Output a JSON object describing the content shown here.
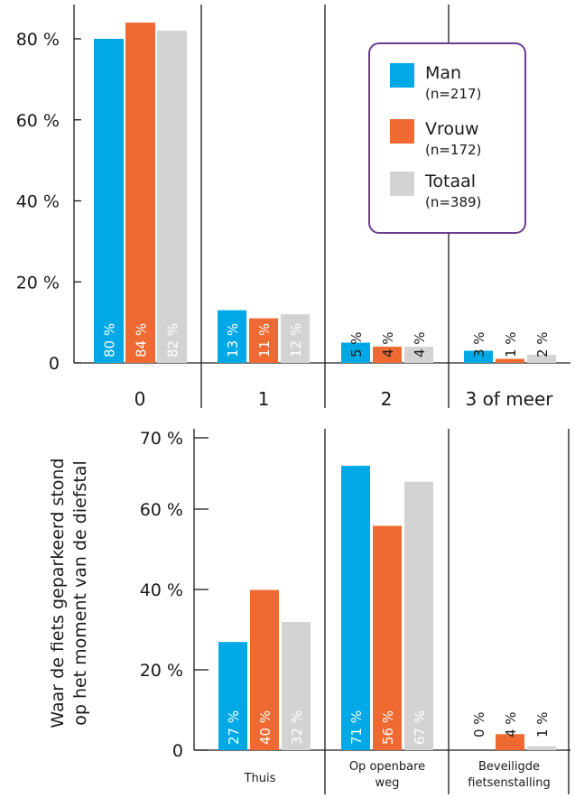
{
  "colors": {
    "man": "#00a9e6",
    "vrouw": "#ef6a32",
    "totaal": "#d3d3d3",
    "legend_border": "#6a3d8f",
    "axis": "#1a1a1a"
  },
  "chart_data": [
    {
      "type": "bar",
      "categories": [
        "0",
        "1",
        "2",
        "3 of meer"
      ],
      "ylim": [
        0,
        90
      ],
      "yticks": [
        "0",
        "20 %",
        "40 %",
        "60 %",
        "80 %"
      ],
      "series": [
        {
          "name": "Man",
          "n": "(n=217)",
          "values": [
            80,
            13,
            5,
            3
          ],
          "labels": [
            "80 %",
            "13 %",
            "5 %",
            "3 %"
          ]
        },
        {
          "name": "Vrouw",
          "n": "(n=172)",
          "values": [
            84,
            11,
            4,
            1
          ],
          "labels": [
            "84 %",
            "11 %",
            "4 %",
            "1 %"
          ]
        },
        {
          "name": "Totaal",
          "n": "(n=389)",
          "values": [
            82,
            12,
            4,
            2
          ],
          "labels": [
            "82 %",
            "12 %",
            "4 %",
            "2 %"
          ]
        }
      ],
      "legend": "top-right",
      "grid": false
    },
    {
      "type": "bar",
      "categories": [
        [
          "Thuis"
        ],
        [
          "Op openbare",
          "weg"
        ],
        [
          "Beveiligde",
          "fietsenstalling"
        ]
      ],
      "ylabel_lines": [
        "Waar de fiets geparkeerd stond",
        "op het moment van de diefstal"
      ],
      "ylim": [
        0,
        78
      ],
      "yticks": [
        "0",
        "20 %",
        "40 %",
        "60 %",
        "70 %"
      ],
      "series": [
        {
          "name": "Man",
          "values": [
            27,
            71,
            0
          ],
          "labels": [
            "27 %",
            "71 %",
            "0 %"
          ]
        },
        {
          "name": "Vrouw",
          "values": [
            40,
            56,
            4
          ],
          "labels": [
            "40 %",
            "56 %",
            "4 %"
          ]
        },
        {
          "name": "Totaal",
          "values": [
            32,
            67,
            1
          ],
          "labels": [
            "32 %",
            "67 %",
            "1 %"
          ]
        }
      ],
      "grid": false
    }
  ]
}
